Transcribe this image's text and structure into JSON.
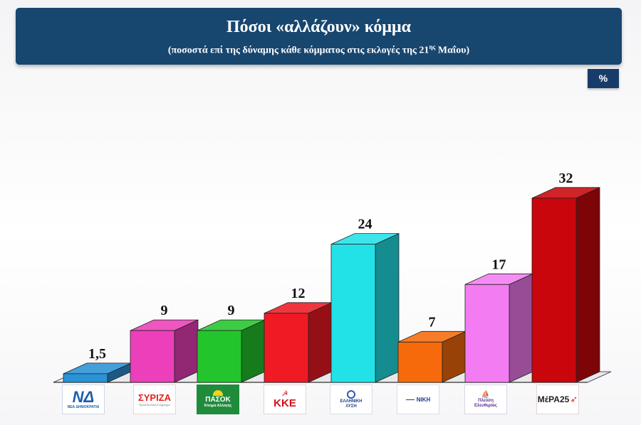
{
  "header": {
    "title": "Πόσοι «αλλάζουν» κόμμα",
    "subtitle_before_sup": "(ποσοστά επί της δύναμης κάθε κόμματος στις εκλογές της 21",
    "subtitle_sup": "ης",
    "subtitle_after_sup": " Μαΐου)"
  },
  "unit_badge": "%",
  "colors": {
    "header_bg": "#17466f",
    "badge_bg": "#173c6a"
  },
  "chart_data": {
    "type": "bar",
    "style": "3d",
    "title": "Πόσοι «αλλάζουν» κόμμα",
    "subtitle": "(ποσοστά επί της δύναμης κάθε κόμματος στις εκλογές της 21ης Μαΐου)",
    "unit": "%",
    "ylim": [
      0,
      34
    ],
    "grid": false,
    "legend": "none",
    "category_labels": "party logos",
    "values": [
      1.5,
      9,
      9,
      12,
      24,
      7,
      17,
      32
    ],
    "value_labels": [
      "1,5",
      "9",
      "9",
      "12",
      "24",
      "7",
      "17",
      "32"
    ],
    "colors": [
      "#2a92d6",
      "#ec3fba",
      "#22c62c",
      "#ef1a24",
      "#22e2e8",
      "#f66a0c",
      "#f47cf2",
      "#c9060b"
    ]
  },
  "logos": [
    {
      "name": "nd",
      "lines": [
        "ΝΔ",
        "ΝΕΑ ΔΗΜΟΚΡΑΤΙΑ"
      ],
      "color": "#1b5fae"
    },
    {
      "name": "syriza",
      "lines": [
        "ΣΥΡΙΖΑ",
        "Προοδευτική Συμμαχία"
      ],
      "color": "#e2231a"
    },
    {
      "name": "pasok",
      "lines": [
        "ΠΑΣΟΚ",
        "Κίνημα Αλλαγής"
      ],
      "color": "#1f8c3b"
    },
    {
      "name": "kke",
      "lines": [
        "☭",
        "ΚΚΕ"
      ],
      "color": "#d0121a"
    },
    {
      "name": "elliniki-lysi",
      "lines": [
        "ΕΛΛΗΝΙΚΗ",
        "ΛΥΣΗ"
      ],
      "color": "#1f3f86"
    },
    {
      "name": "niki",
      "lines": [
        "ΝΙΚΗ"
      ],
      "color": "#1c3f8c"
    },
    {
      "name": "plefsi-eleftherias",
      "lines": [
        "Πλεύση",
        "Ελευθερίας"
      ],
      "color": "#5c2d91"
    },
    {
      "name": "mera25",
      "lines": [
        "ΜέΡΑ25"
      ],
      "color": "#222222"
    }
  ]
}
